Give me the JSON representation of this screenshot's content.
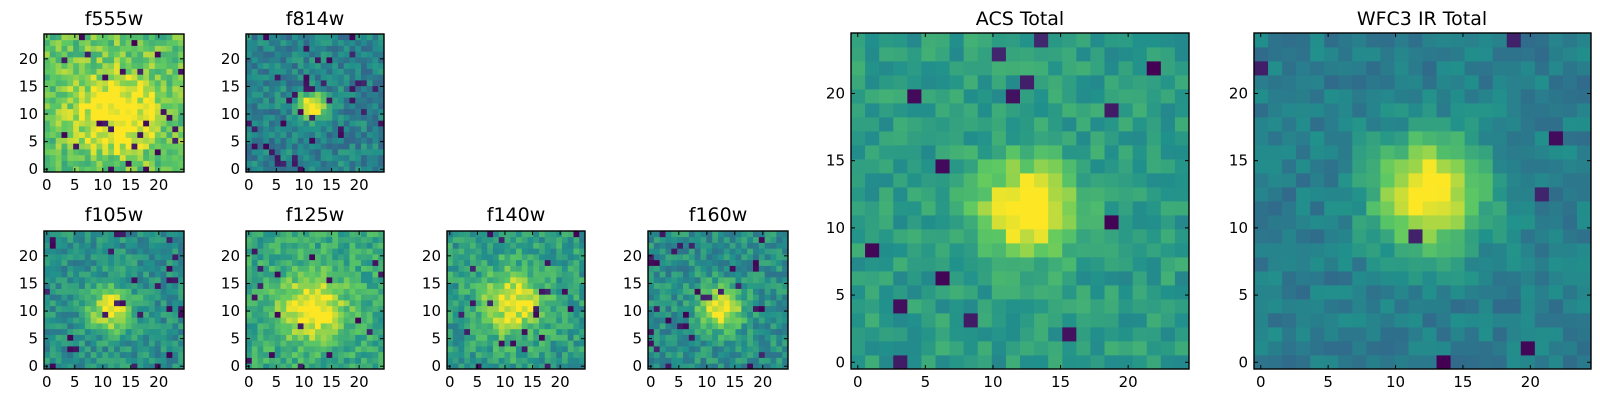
{
  "chart_data": [
    {
      "type": "heatmap",
      "title": "f555w",
      "size": 24,
      "peak": [
        12,
        10
      ],
      "peak_strength": 0.35,
      "sigma": 5,
      "base": 0.72,
      "noise": 0.3,
      "dark_frac": 0.04,
      "seed": 11,
      "xticks": [
        "0",
        "5",
        "10",
        "15",
        "20"
      ],
      "yticks": [
        "0",
        "5",
        "10",
        "15",
        "20"
      ],
      "xlim": [
        0,
        24
      ],
      "ylim": [
        0,
        24
      ]
    },
    {
      "type": "heatmap",
      "title": "f814w",
      "size": 24,
      "peak": [
        11,
        11
      ],
      "peak_strength": 0.7,
      "sigma": 1.6,
      "base": 0.45,
      "noise": 0.25,
      "dark_frac": 0.06,
      "seed": 23,
      "xticks": [
        "0",
        "5",
        "10",
        "15",
        "20"
      ],
      "yticks": [
        "0",
        "5",
        "10",
        "15",
        "20"
      ],
      "xlim": [
        0,
        24
      ],
      "ylim": [
        0,
        24
      ]
    },
    {
      "type": "heatmap",
      "title": "f105w",
      "size": 24,
      "peak": [
        11,
        10
      ],
      "peak_strength": 0.55,
      "sigma": 2.6,
      "base": 0.5,
      "noise": 0.25,
      "dark_frac": 0.05,
      "seed": 37,
      "xticks": [
        "0",
        "5",
        "10",
        "15",
        "20"
      ],
      "yticks": [
        "0",
        "5",
        "10",
        "15",
        "20"
      ],
      "xlim": [
        0,
        24
      ],
      "ylim": [
        0,
        24
      ]
    },
    {
      "type": "heatmap",
      "title": "f125w",
      "size": 24,
      "peak": [
        11,
        10
      ],
      "peak_strength": 0.45,
      "sigma": 4,
      "base": 0.6,
      "noise": 0.25,
      "dark_frac": 0.03,
      "seed": 41,
      "xticks": [
        "0",
        "5",
        "10",
        "15",
        "20"
      ],
      "yticks": [
        "0",
        "5",
        "10",
        "15",
        "20"
      ],
      "xlim": [
        0,
        24
      ],
      "ylim": [
        0,
        24
      ]
    },
    {
      "type": "heatmap",
      "title": "f140w",
      "size": 24,
      "peak": [
        11,
        11
      ],
      "peak_strength": 0.45,
      "sigma": 4,
      "base": 0.55,
      "noise": 0.28,
      "dark_frac": 0.05,
      "seed": 53,
      "xticks": [
        "0",
        "5",
        "10",
        "15",
        "20"
      ],
      "yticks": [
        "0",
        "5",
        "10",
        "15",
        "20"
      ],
      "xlim": [
        0,
        24
      ],
      "ylim": [
        0,
        24
      ]
    },
    {
      "type": "heatmap",
      "title": "f160w",
      "size": 24,
      "peak": [
        12,
        10
      ],
      "peak_strength": 0.55,
      "sigma": 2.6,
      "base": 0.5,
      "noise": 0.25,
      "dark_frac": 0.05,
      "seed": 67,
      "xticks": [
        "0",
        "5",
        "10",
        "15",
        "20"
      ],
      "yticks": [
        "0",
        "5",
        "10",
        "15",
        "20"
      ],
      "xlim": [
        0,
        24
      ],
      "ylim": [
        0,
        24
      ]
    },
    {
      "type": "heatmap",
      "title": "ACS Total",
      "size": 24,
      "peak": [
        12,
        11
      ],
      "peak_strength": 0.6,
      "sigma": 2.2,
      "base": 0.55,
      "noise": 0.18,
      "dark_frac": 0.03,
      "seed": 79,
      "xticks": [
        "0",
        "5",
        "10",
        "15",
        "20"
      ],
      "yticks": [
        "0",
        "5",
        "10",
        "15",
        "20"
      ],
      "xlim": [
        0,
        24
      ],
      "ylim": [
        0,
        24
      ]
    },
    {
      "type": "heatmap",
      "title": "WFC3 IR Total",
      "size": 24,
      "peak": [
        12,
        12
      ],
      "peak_strength": 0.65,
      "sigma": 2.8,
      "base": 0.42,
      "noise": 0.15,
      "dark_frac": 0.02,
      "seed": 97,
      "xticks": [
        "0",
        "5",
        "10",
        "15",
        "20"
      ],
      "yticks": [
        "0",
        "5",
        "10",
        "15",
        "20"
      ],
      "xlim": [
        0,
        24
      ],
      "ylim": [
        0,
        24
      ]
    }
  ],
  "colormap": [
    "#440154",
    "#3b528b",
    "#21918c",
    "#5ec962",
    "#fde725"
  ]
}
